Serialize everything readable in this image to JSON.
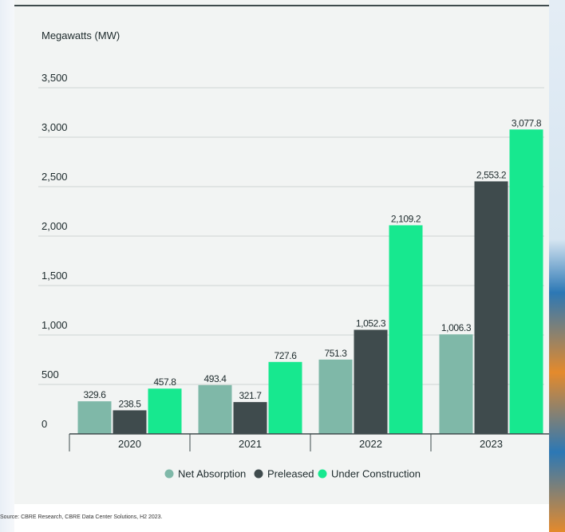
{
  "chart_data": {
    "type": "bar",
    "ylabel": "Megawatts (MW)",
    "ylim": [
      0,
      3500
    ],
    "yticks": [
      0,
      500,
      1000,
      1500,
      2000,
      2500,
      3000,
      3500
    ],
    "ytick_labels": [
      "0",
      "500",
      "1,000",
      "1,500",
      "2,000",
      "2,500",
      "3,000",
      "3,500"
    ],
    "grid": true,
    "legend_position": "bottom",
    "categories": [
      "2020",
      "2021",
      "2022",
      "2023"
    ],
    "series": [
      {
        "name": "Net Absorption",
        "color": "#7fb8a8",
        "values": [
          329.6,
          493.4,
          751.3,
          1006.3
        ],
        "labels": [
          "329.6",
          "493.4",
          "751.3",
          "1,006.3"
        ]
      },
      {
        "name": "Preleased",
        "color": "#3f4b4d",
        "values": [
          238.5,
          321.7,
          1052.3,
          2553.2
        ],
        "labels": [
          "238.5",
          "321.7",
          "1,052.3",
          "2,553.2"
        ]
      },
      {
        "name": "Under Construction",
        "color": "#17e88f",
        "values": [
          457.8,
          727.6,
          2109.2,
          3077.8
        ],
        "labels": [
          "457.8",
          "727.6",
          "2,109.2",
          "3,077.8"
        ]
      }
    ]
  },
  "footer": {
    "source": "Source: CBRE Research, CBRE Data Center Solutions, H2 2023."
  }
}
